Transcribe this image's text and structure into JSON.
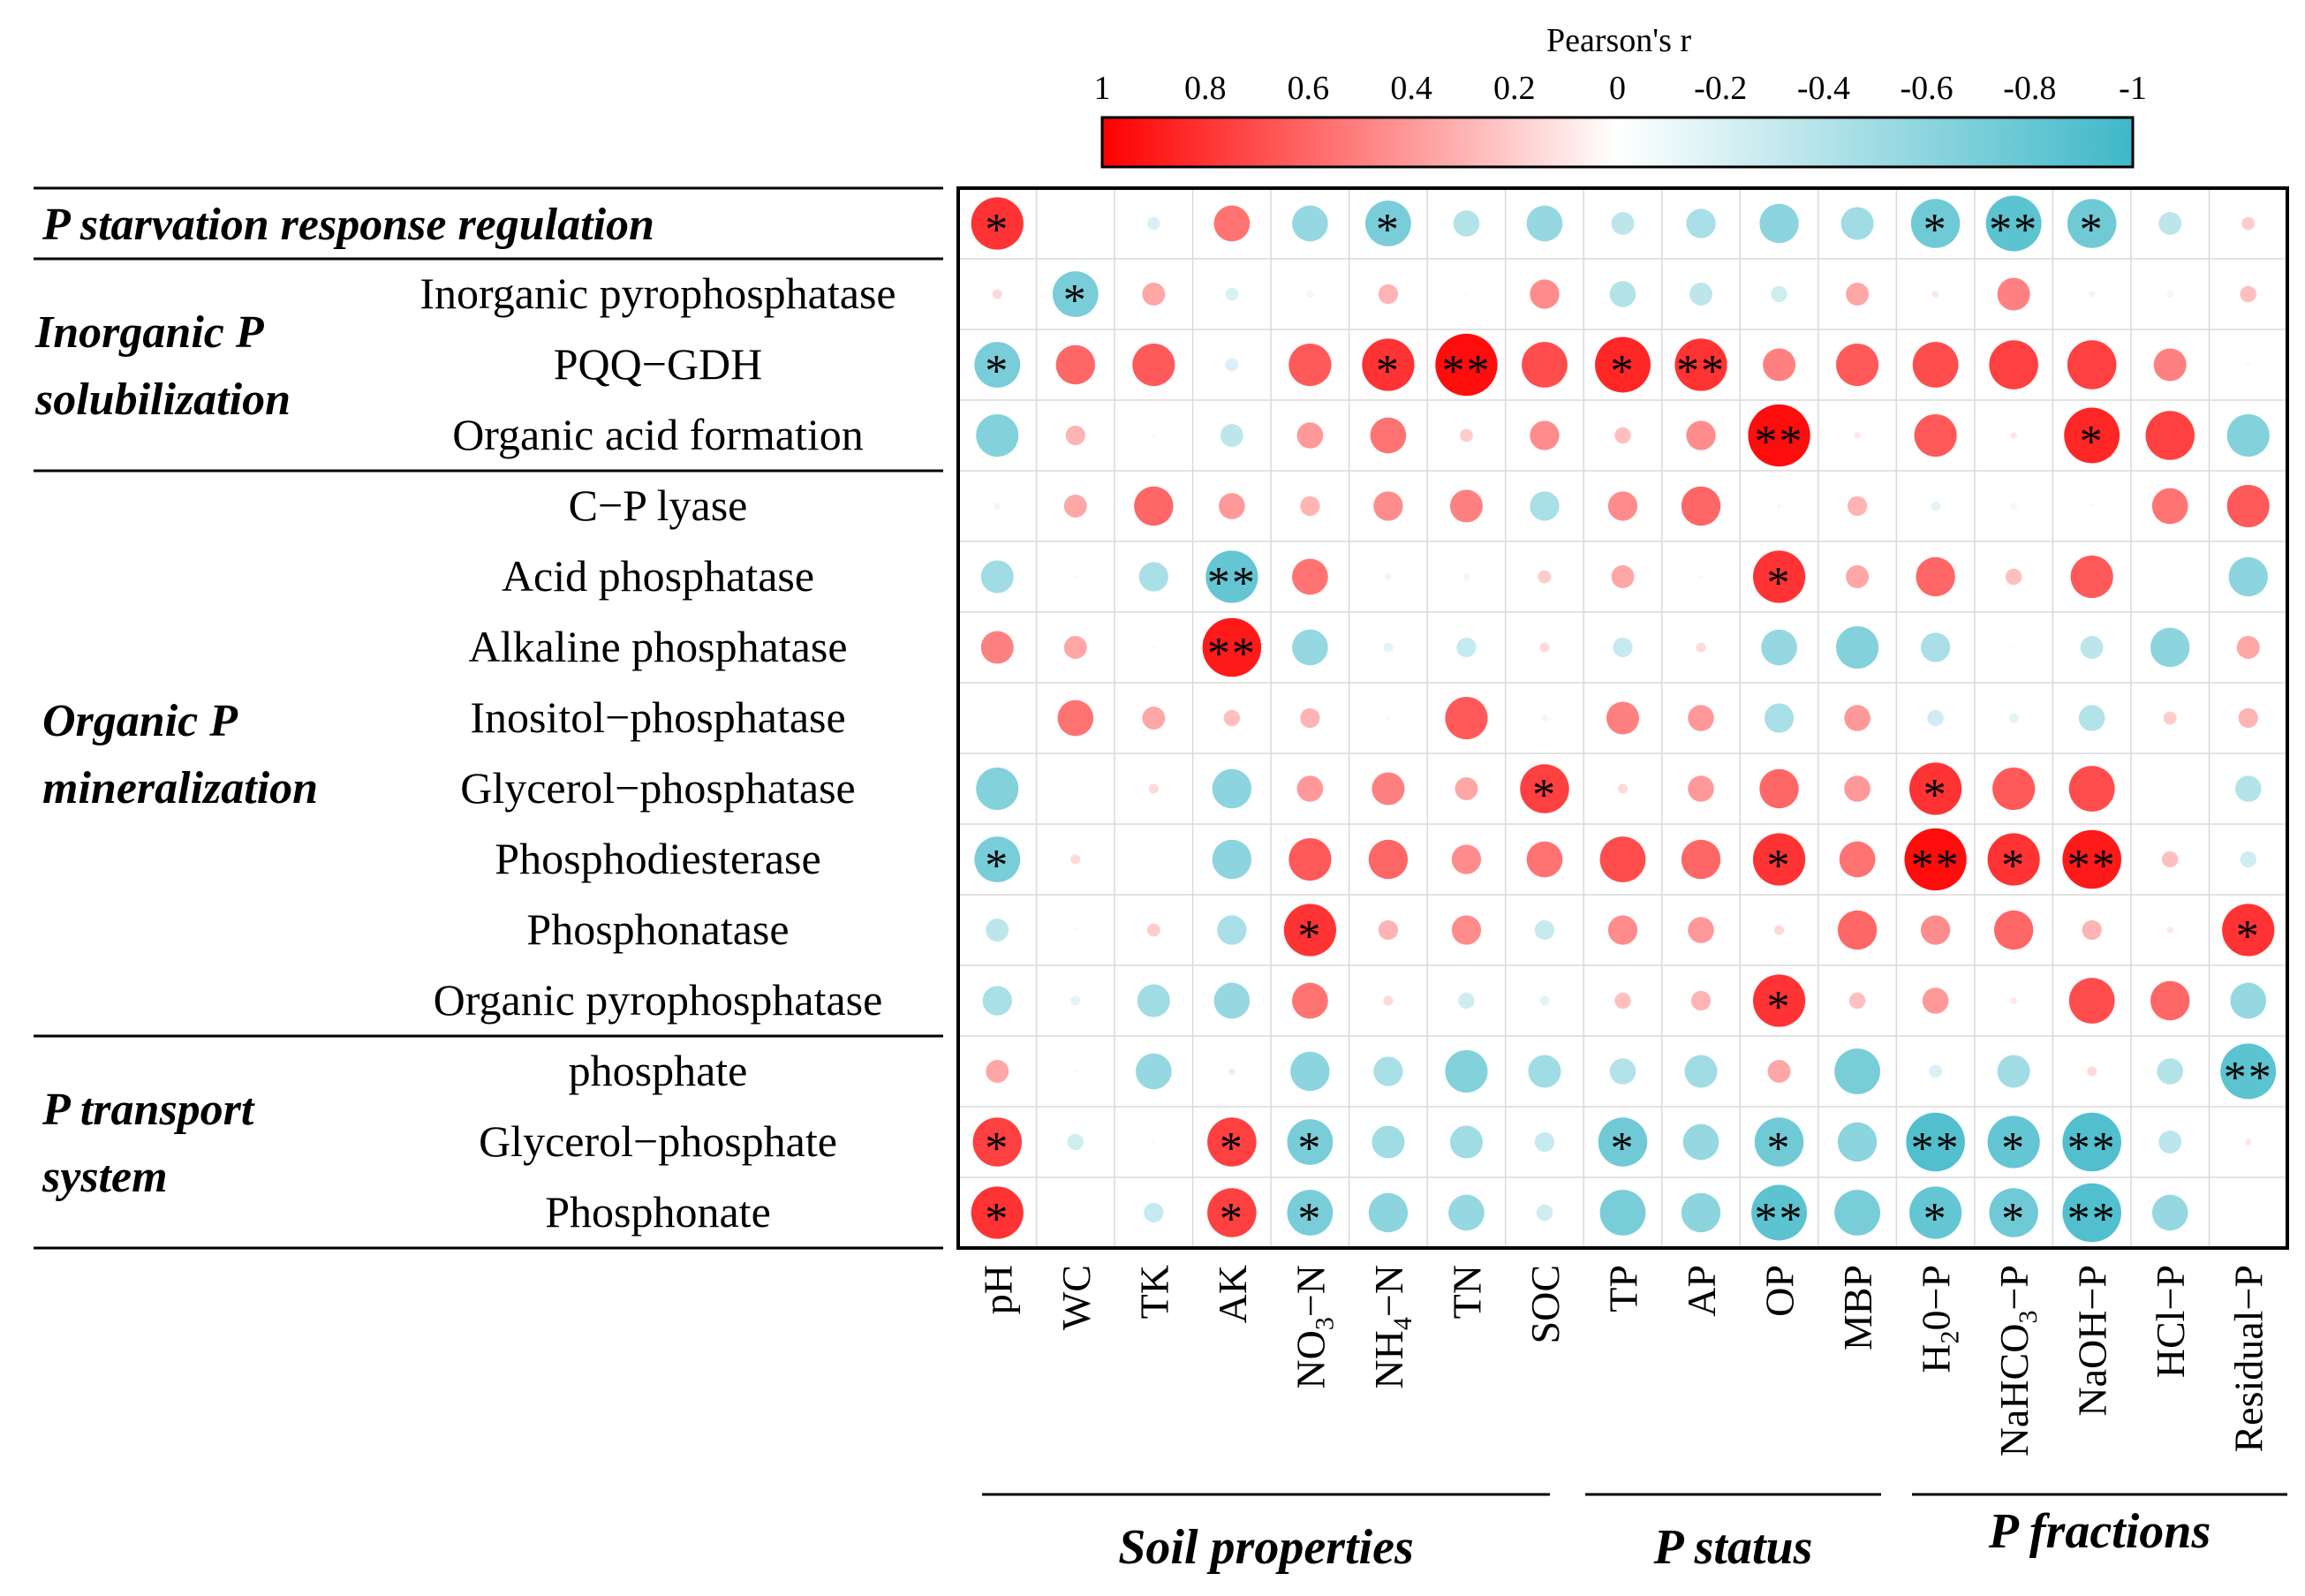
{
  "colors": {
    "positive": "#ff0000",
    "negative": "#3fb8c8",
    "grid": "#d9d9d9",
    "frame": "#000000"
  },
  "chart_data": {
    "type": "heatmap",
    "style": "circle correlation matrix",
    "legend": {
      "title": "Pearson's r",
      "ticks": [
        "1",
        "0.8",
        "0.6",
        "0.4",
        "0.2",
        "0",
        "-0.2",
        "-0.4",
        "-0.6",
        "-0.8",
        "-1"
      ],
      "placement": "top"
    },
    "columns": [
      "pH",
      "WC",
      "TK",
      "AK",
      "NO3−N",
      "NH4−N",
      "TN",
      "SOC",
      "TP",
      "AP",
      "OP",
      "MBP",
      "H20−P",
      "NaHCO3−P",
      "NaOH−P",
      "HCl−P",
      "Residual−P"
    ],
    "column_labels": [
      {
        "main": "pH"
      },
      {
        "main": "WC"
      },
      {
        "main": "TK"
      },
      {
        "main": "AK"
      },
      {
        "main": "NO",
        "sub": "3",
        "rest": "−N"
      },
      {
        "main": "NH",
        "sub": "4",
        "rest": "−N"
      },
      {
        "main": "TN"
      },
      {
        "main": "SOC"
      },
      {
        "main": "TP"
      },
      {
        "main": "AP"
      },
      {
        "main": "OP"
      },
      {
        "main": "MBP"
      },
      {
        "main": "H",
        "sub": "2",
        "rest": "0−P"
      },
      {
        "main": "NaHCO",
        "sub": "3",
        "rest": "−P"
      },
      {
        "main": "NaOH−P"
      },
      {
        "main": "HCl−P"
      },
      {
        "main": "Residual−P"
      }
    ],
    "column_groups": [
      {
        "label": "Soil properties",
        "from": 0,
        "to": 7
      },
      {
        "label": "P status",
        "from": 8,
        "to": 10
      },
      {
        "label": "P fractions",
        "from": 11,
        "to": 16
      }
    ],
    "rows": [
      "P starvation response regulation",
      "Inorganic pyrophosphatase",
      "PQQ−GDH",
      "Organic acid formation",
      "C−P lyase",
      "Acid phosphatase",
      "Alkaline phosphatase",
      "Inositol−phosphatase",
      "Glycerol−phosphatase",
      "Phosphodiesterase",
      "Phosphonatase",
      "Organic pyrophosphatase",
      "phosphate",
      "Glycerol−phosphate",
      "Phosphonate"
    ],
    "row_groups": [
      {
        "label": "P starvation response regulation",
        "rows": [
          0,
          0
        ]
      },
      {
        "label": "Inorganic P solubilization",
        "rows": [
          1,
          3
        ]
      },
      {
        "label": "Organic P mineralization",
        "rows": [
          4,
          11
        ]
      },
      {
        "label": "P transport system",
        "rows": [
          12,
          14
        ]
      }
    ],
    "values": [
      [
        0.8,
        0.0,
        -0.2,
        0.55,
        -0.55,
        -0.7,
        -0.4,
        -0.55,
        -0.35,
        -0.45,
        -0.6,
        -0.5,
        -0.75,
        -0.85,
        -0.75,
        -0.35,
        0.2
      ],
      [
        0.15,
        -0.7,
        0.35,
        -0.2,
        -0.1,
        0.3,
        -0.05,
        0.45,
        -0.4,
        -0.35,
        -0.25,
        0.35,
        0.1,
        0.5,
        -0.1,
        -0.1,
        0.25
      ],
      [
        -0.7,
        0.6,
        0.65,
        -0.2,
        0.65,
        0.8,
        0.95,
        0.7,
        0.85,
        0.8,
        0.5,
        0.65,
        0.7,
        0.75,
        0.75,
        0.5,
        0.05
      ],
      [
        -0.65,
        0.3,
        0.05,
        -0.35,
        0.4,
        0.55,
        0.2,
        0.45,
        0.25,
        0.45,
        0.95,
        0.1,
        0.65,
        0.1,
        0.85,
        0.75,
        -0.65
      ],
      [
        -0.1,
        0.35,
        0.6,
        0.4,
        0.3,
        0.45,
        0.5,
        -0.45,
        0.45,
        0.6,
        0.05,
        0.3,
        -0.15,
        -0.1,
        -0.05,
        0.55,
        0.65
      ],
      [
        -0.5,
        -0.05,
        -0.45,
        -0.8,
        0.55,
        -0.1,
        -0.1,
        0.2,
        0.35,
        0.05,
        0.8,
        0.35,
        0.6,
        0.25,
        0.65,
        0.0,
        -0.6
      ],
      [
        0.5,
        0.35,
        -0.05,
        0.9,
        -0.55,
        -0.15,
        -0.3,
        0.15,
        -0.3,
        0.15,
        -0.55,
        -0.65,
        -0.45,
        -0.05,
        -0.35,
        -0.6,
        0.35
      ],
      [
        0.0,
        0.55,
        0.35,
        0.25,
        0.3,
        0.05,
        0.65,
        -0.1,
        0.5,
        0.4,
        -0.45,
        0.4,
        -0.25,
        -0.15,
        -0.4,
        0.2,
        0.3
      ],
      [
        -0.65,
        0.0,
        0.15,
        -0.6,
        0.4,
        0.5,
        0.35,
        0.75,
        0.15,
        0.4,
        0.6,
        0.4,
        0.8,
        0.65,
        0.7,
        0.0,
        -0.4
      ],
      [
        -0.7,
        0.15,
        0.0,
        -0.6,
        0.65,
        0.6,
        0.45,
        0.55,
        0.7,
        0.6,
        0.8,
        0.55,
        0.95,
        0.8,
        0.9,
        0.25,
        -0.25
      ],
      [
        -0.35,
        -0.05,
        0.2,
        -0.45,
        0.8,
        0.3,
        0.45,
        -0.3,
        0.45,
        0.4,
        0.15,
        0.6,
        0.45,
        0.6,
        0.3,
        0.1,
        0.8
      ],
      [
        -0.45,
        -0.15,
        -0.5,
        -0.55,
        0.55,
        0.15,
        -0.25,
        -0.15,
        0.25,
        0.3,
        0.8,
        0.25,
        0.4,
        0.1,
        0.7,
        0.6,
        -0.55
      ],
      [
        0.35,
        -0.05,
        -0.55,
        0.1,
        -0.6,
        -0.45,
        -0.65,
        -0.5,
        -0.4,
        -0.5,
        0.35,
        -0.7,
        -0.2,
        -0.5,
        0.15,
        -0.4,
        -0.85
      ],
      [
        0.75,
        -0.25,
        -0.05,
        0.75,
        -0.7,
        -0.5,
        -0.5,
        -0.3,
        -0.75,
        -0.55,
        -0.75,
        -0.6,
        -0.9,
        -0.8,
        -0.9,
        -0.35,
        0.1
      ],
      [
        0.8,
        0.0,
        -0.3,
        0.75,
        -0.7,
        -0.6,
        -0.55,
        -0.25,
        -0.7,
        -0.6,
        -0.85,
        -0.7,
        -0.8,
        -0.75,
        -0.9,
        -0.55,
        0.0
      ]
    ],
    "significance": [
      [
        "*",
        "",
        "",
        "",
        "",
        "*",
        "",
        "",
        "",
        "",
        "",
        "",
        "*",
        "**",
        "*",
        "",
        ""
      ],
      [
        "",
        "*",
        "",
        "",
        "",
        "",
        "",
        "",
        "",
        "",
        "",
        "",
        "",
        "",
        "",
        "",
        ""
      ],
      [
        "*",
        "",
        "",
        "",
        "",
        "*",
        "**",
        "",
        "*",
        "**",
        "",
        "",
        "",
        "",
        "",
        "",
        ""
      ],
      [
        "",
        "",
        "",
        "",
        "",
        "",
        "",
        "",
        "",
        "",
        "**",
        "",
        "",
        "",
        "*",
        "",
        ""
      ],
      [
        "",
        "",
        "",
        "",
        "",
        "",
        "",
        "",
        "",
        "",
        "",
        "",
        "",
        "",
        "",
        "",
        ""
      ],
      [
        "",
        "",
        "",
        "**",
        "",
        "",
        "",
        "",
        "",
        "",
        "*",
        "",
        "",
        "",
        "",
        "",
        ""
      ],
      [
        "",
        "",
        "",
        "**",
        "",
        "",
        "",
        "",
        "",
        "",
        "",
        "",
        "",
        "",
        "",
        "",
        ""
      ],
      [
        "",
        "",
        "",
        "",
        "",
        "",
        "",
        "",
        "",
        "",
        "",
        "",
        "",
        "",
        "",
        "",
        ""
      ],
      [
        "",
        "",
        "",
        "",
        "",
        "",
        "",
        "*",
        "",
        "",
        "",
        "",
        "*",
        "",
        "",
        "",
        ""
      ],
      [
        "*",
        "",
        "",
        "",
        "",
        "",
        "",
        "",
        "",
        "",
        "*",
        "",
        "**",
        "*",
        "**",
        "",
        ""
      ],
      [
        "",
        "",
        "",
        "",
        "*",
        "",
        "",
        "",
        "",
        "",
        "",
        "",
        "",
        "",
        "",
        "",
        "*"
      ],
      [
        "",
        "",
        "",
        "",
        "",
        "",
        "",
        "",
        "",
        "",
        "*",
        "",
        "",
        "",
        "",
        "",
        ""
      ],
      [
        "",
        "",
        "",
        "",
        "",
        "",
        "",
        "",
        "",
        "",
        "",
        "",
        "",
        "",
        "",
        "",
        "**"
      ],
      [
        "*",
        "",
        "",
        "*",
        "*",
        "",
        "",
        "",
        "*",
        "",
        "*",
        "",
        "**",
        "*",
        "**",
        "",
        ""
      ],
      [
        "*",
        "",
        "",
        "*",
        "*",
        "",
        "",
        "",
        "",
        "",
        "**",
        "",
        "*",
        "*",
        "**",
        "",
        ""
      ]
    ]
  }
}
